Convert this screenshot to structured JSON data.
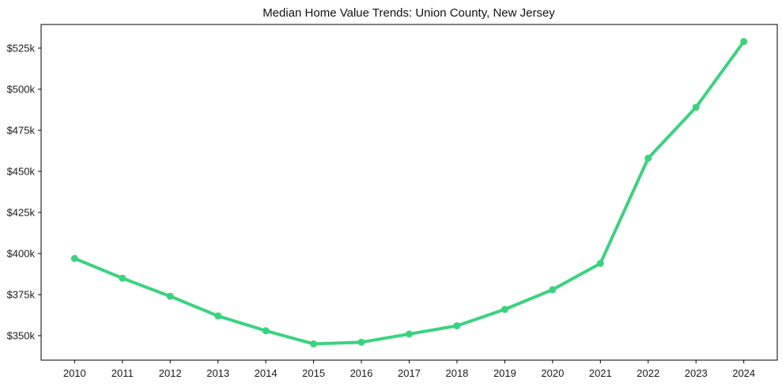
{
  "chart_data": {
    "type": "line",
    "title": "Median Home Value Trends: Union County, New Jersey",
    "x": [
      2010,
      2011,
      2012,
      2013,
      2014,
      2015,
      2016,
      2017,
      2018,
      2019,
      2020,
      2021,
      2022,
      2023,
      2024
    ],
    "x_tick_labels": [
      "2010",
      "2011",
      "2012",
      "2013",
      "2014",
      "2015",
      "2016",
      "2017",
      "2018",
      "2019",
      "2020",
      "2021",
      "2022",
      "2023",
      "2024"
    ],
    "series": [
      {
        "name": "Median Home Value",
        "values": [
          397000,
          385000,
          374000,
          362000,
          353000,
          345000,
          346000,
          351000,
          356000,
          366000,
          378000,
          394000,
          458000,
          489000,
          529000
        ]
      }
    ],
    "y_ticks": [
      350000,
      375000,
      400000,
      425000,
      450000,
      475000,
      500000,
      525000
    ],
    "y_tick_labels": [
      "$350k",
      "$375k",
      "$400k",
      "$425k",
      "$450k",
      "$475k",
      "$500k",
      "$525k"
    ],
    "xlim": [
      2009.3,
      2024.7
    ],
    "ylim": [
      335100,
      539400
    ],
    "grid": false,
    "legend": "none",
    "line_color": "#3bd27f",
    "axis_color": "#000000",
    "text_color": "#1a1a1a",
    "background_color": "#ffffff",
    "marker": "circle"
  }
}
